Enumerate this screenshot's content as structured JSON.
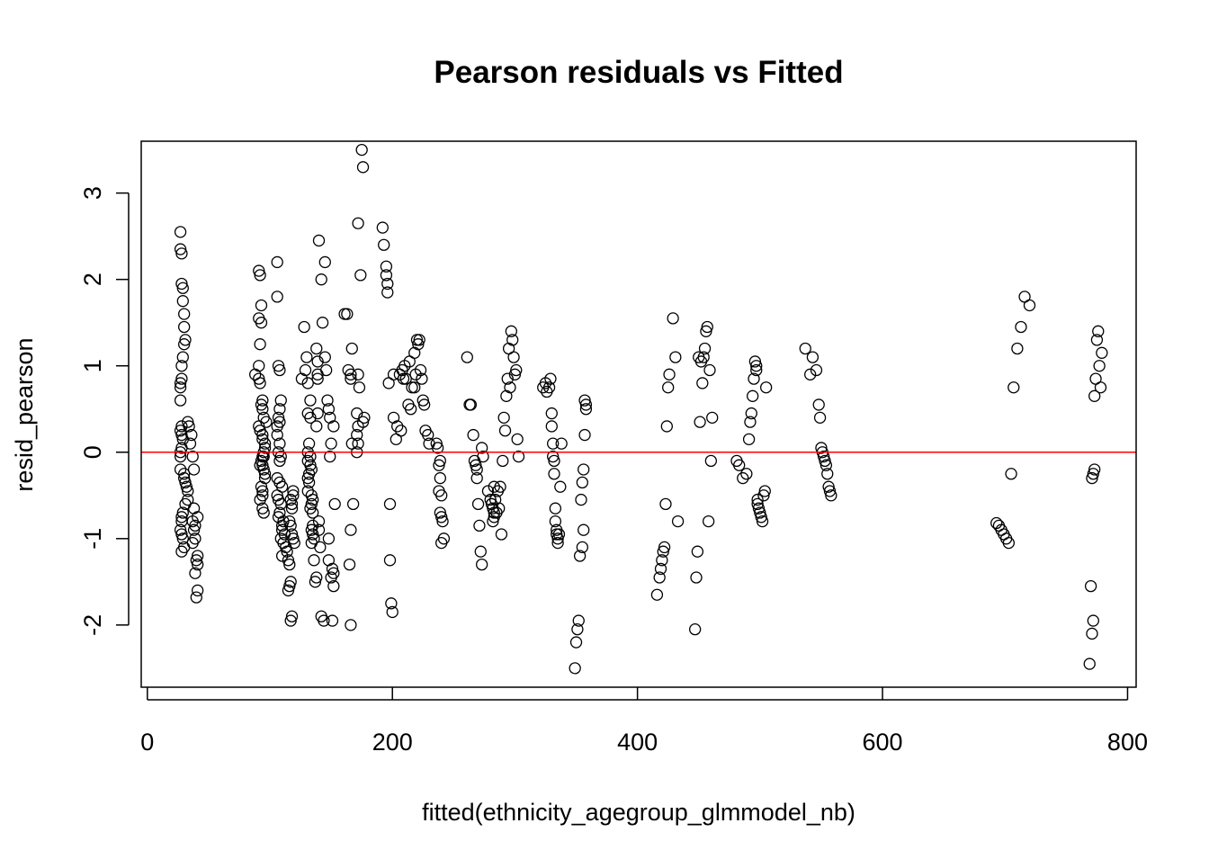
{
  "chart_data": {
    "type": "scatter",
    "title": "Pearson residuals vs Fitted",
    "xlabel": "fitted(ethnicity_agegroup_glmmodel_nb)",
    "ylabel": "resid_pearson",
    "xlim": [
      -5,
      807
    ],
    "ylim": [
      -2.72,
      3.6
    ],
    "xticks": [
      0,
      200,
      400,
      600,
      800
    ],
    "yticks": [
      -2,
      -1,
      0,
      1,
      2,
      3
    ],
    "grid": false,
    "legend": "none",
    "marker": "open-circle",
    "reference_line": {
      "y": 0,
      "color": "#ff0000"
    },
    "colors": {
      "points": "#000000",
      "reference_line": "#ff0000",
      "frame": "#000000"
    },
    "x": [
      27,
      27,
      28,
      28,
      29,
      29,
      30,
      30,
      31,
      30,
      29,
      28,
      28,
      27,
      27,
      27,
      28,
      27,
      28,
      29,
      28,
      27,
      27,
      27,
      30,
      30,
      31,
      32,
      33,
      33,
      31,
      29,
      28,
      28,
      27,
      28,
      29,
      30,
      28,
      33,
      34,
      36,
      35,
      37,
      38,
      38,
      37,
      38,
      39,
      41,
      40,
      41,
      39,
      41,
      40,
      41,
      37,
      39,
      88,
      91,
      92,
      91,
      93,
      91,
      93,
      92,
      91,
      92,
      93,
      94,
      91,
      92,
      94,
      94,
      96,
      95,
      94,
      93,
      94,
      95,
      96,
      93,
      94,
      94,
      92,
      94,
      95,
      94,
      95,
      97,
      96,
      92,
      95,
      96,
      106,
      106,
      107,
      108,
      109,
      108,
      107,
      108,
      106,
      106,
      108,
      107,
      109,
      108,
      106,
      108,
      110,
      106,
      107,
      109,
      108,
      107,
      111,
      110,
      110,
      112,
      109,
      111,
      113,
      114,
      110,
      115,
      116,
      117,
      116,
      115,
      117,
      118,
      118,
      119,
      119,
      117,
      118,
      116,
      117,
      118,
      119,
      120,
      126,
      128,
      130,
      129,
      131,
      133,
      131,
      133,
      132,
      131,
      133,
      131,
      133,
      134,
      132,
      131,
      132,
      131,
      134,
      135,
      134,
      133,
      135,
      135,
      134,
      135,
      136,
      134,
      136,
      138,
      137,
      138,
      139,
      139,
      139,
      139,
      138,
      140,
      140,
      141,
      140,
      142,
      142,
      144,
      145,
      143,
      145,
      146,
      147,
      148,
      149,
      150,
      149,
      148,
      148,
      151,
      150,
      152,
      152,
      151,
      153,
      152,
      161,
      163,
      166,
      164,
      166,
      167,
      168,
      166,
      165,
      166,
      167,
      171,
      172,
      171,
      172,
      171,
      173,
      174,
      172,
      172,
      175,
      176,
      177,
      176,
      192,
      193,
      195,
      195,
      196,
      196,
      197,
      198,
      198,
      199,
      200,
      201,
      201,
      203,
      204,
      206,
      207,
      208,
      209,
      210,
      211,
      213,
      214,
      215,
      216,
      218,
      218,
      219,
      220,
      221,
      222,
      223,
      224,
      225,
      226,
      227,
      229,
      230,
      236,
      237,
      238,
      239,
      239,
      238,
      240,
      240,
      241,
      242,
      240,
      239,
      261,
      263,
      264,
      266,
      267,
      268,
      269,
      269,
      270,
      271,
      272,
      273,
      273,
      274,
      278,
      280,
      281,
      282,
      283,
      283,
      282,
      281,
      283,
      284,
      285,
      286,
      287,
      288,
      289,
      290,
      291,
      292,
      293,
      294,
      295,
      296,
      297,
      298,
      299,
      300,
      301,
      302,
      303,
      323,
      325,
      326,
      328,
      329,
      330,
      330,
      331,
      331,
      332,
      332,
      333,
      333,
      334,
      334,
      335,
      335,
      336,
      337,
      338,
      349,
      350,
      351,
      352,
      353,
      354,
      355,
      356,
      357,
      358,
      357,
      358,
      356,
      355,
      416,
      418,
      419,
      420,
      421,
      422,
      423,
      424,
      425,
      426,
      429,
      431,
      433,
      447,
      448,
      449,
      450,
      451,
      452,
      453,
      454,
      455,
      456,
      457,
      458,
      459,
      460,
      461,
      481,
      483,
      486,
      489,
      491,
      492,
      493,
      494,
      495,
      496,
      497,
      497,
      498,
      498,
      499,
      500,
      501,
      502,
      503,
      504,
      505,
      537,
      541,
      543,
      546,
      548,
      549,
      550,
      551,
      552,
      553,
      554,
      555,
      556,
      557,
      558,
      693,
      695,
      697,
      699,
      701,
      703,
      705,
      707,
      710,
      713,
      716,
      720,
      769,
      770,
      771,
      772,
      773,
      774,
      775,
      776,
      777,
      778,
      779,
      771,
      772,
      773
    ],
    "y": [
      2.55,
      2.35,
      2.3,
      1.95,
      1.9,
      1.75,
      1.6,
      1.45,
      1.3,
      1.25,
      1.1,
      1.0,
      0.85,
      0.8,
      0.75,
      0.6,
      0.3,
      0.25,
      0.2,
      0.15,
      0.05,
      0.0,
      -0.05,
      -0.2,
      -0.25,
      -0.3,
      -0.35,
      -0.4,
      -0.45,
      -0.55,
      -0.6,
      -0.7,
      -0.75,
      -0.8,
      -0.9,
      -0.95,
      -1.0,
      -1.1,
      -1.15,
      0.35,
      0.3,
      0.2,
      0.1,
      -0.05,
      -0.2,
      -0.65,
      -0.8,
      -0.9,
      -1.0,
      -1.2,
      -1.25,
      -1.3,
      -1.4,
      -1.6,
      -1.68,
      -0.75,
      -1.05,
      -0.85,
      0.9,
      0.85,
      2.05,
      2.1,
      1.7,
      1.55,
      1.5,
      1.25,
      1.0,
      0.8,
      0.55,
      0.5,
      0.3,
      0.25,
      0.2,
      0.15,
      0.05,
      0.0,
      -0.05,
      -0.1,
      -0.15,
      -0.2,
      -0.25,
      -0.4,
      -0.45,
      -0.5,
      -0.55,
      -0.65,
      -0.7,
      0.6,
      0.4,
      0.35,
      -0.3,
      -0.15,
      -0.05,
      0.1,
      2.2,
      1.8,
      1.0,
      0.95,
      0.6,
      0.5,
      0.4,
      0.35,
      0.3,
      0.2,
      0.1,
      0.0,
      -0.05,
      -0.1,
      -0.3,
      -0.35,
      -0.4,
      -0.5,
      -0.55,
      -0.6,
      -0.7,
      -0.75,
      -0.8,
      -0.85,
      -0.9,
      -0.95,
      -1.0,
      -1.05,
      -1.1,
      -1.15,
      -1.2,
      -1.25,
      -1.3,
      -1.5,
      -1.55,
      -1.6,
      -1.95,
      -1.9,
      -0.6,
      -0.45,
      -0.5,
      -0.55,
      -0.65,
      -0.8,
      -0.85,
      -0.95,
      -1.0,
      -1.05,
      0.85,
      1.45,
      1.1,
      0.95,
      0.8,
      0.6,
      0.45,
      0.4,
      0.1,
      0.0,
      -0.05,
      -0.1,
      -0.15,
      -0.2,
      -0.25,
      -0.3,
      -0.35,
      -0.45,
      -0.5,
      -0.55,
      -0.6,
      -0.65,
      -0.7,
      -0.85,
      -0.9,
      -0.95,
      -1.0,
      -1.05,
      -1.25,
      -1.45,
      -1.5,
      1.2,
      1.05,
      0.9,
      0.85,
      0.45,
      0.3,
      -0.8,
      -0.9,
      -1.1,
      2.45,
      2.0,
      -1.9,
      -1.95,
      2.2,
      1.5,
      1.1,
      0.95,
      0.6,
      0.5,
      0.4,
      0.1,
      -0.05,
      -1.0,
      -1.25,
      -1.35,
      -1.45,
      -1.55,
      -1.4,
      -1.95,
      -0.6,
      0.3,
      1.6,
      1.6,
      0.85,
      0.95,
      0.9,
      0.1,
      -0.6,
      -0.9,
      -1.3,
      -2.0,
      1.2,
      0.45,
      0.3,
      0.2,
      0.1,
      0.0,
      0.75,
      2.05,
      2.65,
      0.9,
      3.5,
      3.3,
      0.4,
      0.35,
      2.6,
      2.4,
      2.15,
      2.05,
      1.85,
      1.95,
      0.8,
      -0.6,
      -1.25,
      -1.75,
      -1.85,
      0.9,
      0.4,
      0.15,
      0.3,
      0.9,
      0.25,
      0.95,
      0.85,
      1.0,
      0.85,
      0.55,
      1.05,
      0.5,
      0.75,
      0.75,
      1.15,
      0.9,
      1.3,
      1.25,
      1.3,
      0.95,
      0.85,
      0.6,
      0.55,
      0.25,
      0.2,
      0.1,
      0.1,
      0.05,
      -0.15,
      -0.1,
      -0.3,
      -0.45,
      -0.5,
      -0.75,
      -0.8,
      -1.0,
      -1.05,
      -0.7,
      1.1,
      0.55,
      0.55,
      0.2,
      -0.1,
      -0.15,
      -0.2,
      -0.3,
      -0.6,
      -0.85,
      -1.15,
      -1.3,
      0.05,
      -0.05,
      -0.45,
      -0.55,
      -0.6,
      -0.65,
      -0.7,
      -0.75,
      -0.8,
      -0.6,
      -0.4,
      -0.55,
      -0.7,
      -0.45,
      -0.65,
      -0.4,
      -0.95,
      -0.1,
      0.4,
      0.25,
      0.65,
      0.85,
      1.2,
      0.75,
      1.4,
      1.3,
      1.1,
      0.9,
      0.95,
      0.15,
      -0.05,
      0.75,
      0.8,
      0.7,
      0.75,
      0.85,
      0.45,
      0.3,
      0.1,
      -0.05,
      -0.1,
      -0.25,
      -0.65,
      -0.8,
      -0.9,
      -0.95,
      -1.0,
      -1.05,
      -0.95,
      -0.4,
      0.1,
      -2.5,
      -2.2,
      -2.05,
      -1.95,
      -1.2,
      -0.55,
      -0.35,
      -0.2,
      0.2,
      0.55,
      0.6,
      0.5,
      -0.9,
      -1.1,
      -1.65,
      -1.45,
      -1.35,
      -1.25,
      -1.15,
      -1.1,
      -0.6,
      0.3,
      0.75,
      0.9,
      1.55,
      1.1,
      -0.8,
      -2.05,
      -1.45,
      -1.15,
      1.1,
      0.35,
      1.05,
      0.8,
      1.1,
      1.2,
      1.4,
      1.45,
      -0.8,
      0.95,
      -0.1,
      0.4,
      -0.1,
      -0.15,
      -0.3,
      -0.25,
      0.15,
      0.35,
      0.45,
      0.65,
      0.85,
      1.05,
      1.0,
      0.95,
      -0.55,
      -0.6,
      -0.65,
      -0.7,
      -0.75,
      -0.8,
      -0.5,
      -0.45,
      0.75,
      1.2,
      0.9,
      1.1,
      0.95,
      0.55,
      0.4,
      0.05,
      0.0,
      -0.05,
      -0.1,
      -0.15,
      -0.25,
      -0.4,
      -0.45,
      -0.5,
      -0.82,
      -0.85,
      -0.9,
      -0.95,
      -1.0,
      -1.05,
      -0.25,
      0.75,
      1.2,
      1.45,
      1.8,
      1.7,
      -2.45,
      -1.55,
      -2.1,
      -1.95,
      0.65,
      0.85,
      1.3,
      1.4,
      1.0,
      0.75,
      1.15,
      -0.3,
      -0.25,
      -0.2
    ]
  }
}
